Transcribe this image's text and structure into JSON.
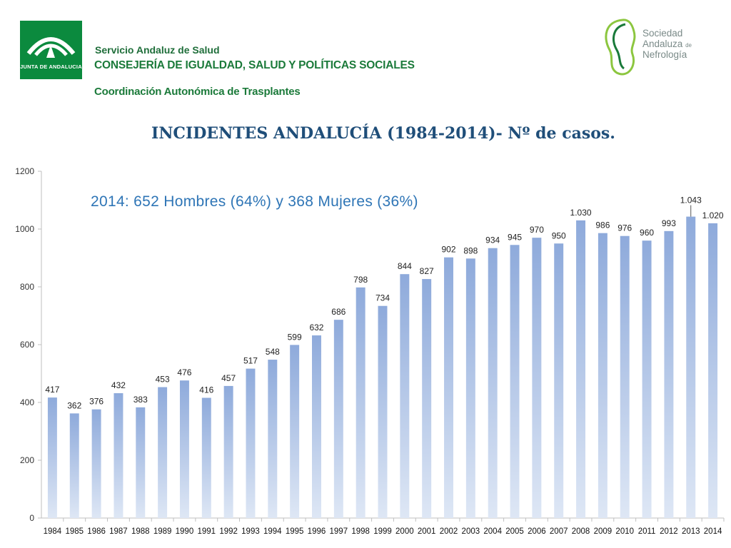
{
  "header": {
    "junta_logo_text": "JUNTA DE ANDALUCIA",
    "org_line1": "Servicio Andaluz de Salud",
    "org_line2": "CONSEJERÍA DE IGUALDAD, SALUD Y POLÍTICAS SOCIALES",
    "org_line3": "Coordinación Autonómica de Trasplantes",
    "sociedad_line1": "Sociedad",
    "sociedad_line2": "Andaluza",
    "sociedad_line2_suffix": "de",
    "sociedad_line3": "Nefrología"
  },
  "chart_data": {
    "type": "bar",
    "title": "INCIDENTES ANDALUCÍA (1984-2014)- Nº de casos.",
    "annotation": "2014: 652 Hombres (64%) y 368 Mujeres (36%)",
    "categories": [
      "1984",
      "1985",
      "1986",
      "1987",
      "1988",
      "1989",
      "1990",
      "1991",
      "1992",
      "1993",
      "1994",
      "1995",
      "1996",
      "1997",
      "1998",
      "1999",
      "2000",
      "2001",
      "2002",
      "2003",
      "2004",
      "2005",
      "2006",
      "2007",
      "2008",
      "2009",
      "2010",
      "2011",
      "2012",
      "2013",
      "2014"
    ],
    "values": [
      417,
      362,
      376,
      432,
      383,
      453,
      476,
      416,
      457,
      517,
      548,
      599,
      632,
      686,
      798,
      734,
      844,
      827,
      902,
      898,
      934,
      945,
      970,
      950,
      1030,
      986,
      976,
      960,
      993,
      1043,
      1020
    ],
    "value_labels": [
      "417",
      "362",
      "376",
      "432",
      "383",
      "453",
      "476",
      "416",
      "457",
      "517",
      "548",
      "599",
      "632",
      "686",
      "798",
      "734",
      "844",
      "827",
      "902",
      "898",
      "934",
      "945",
      "970",
      "950",
      "1.030",
      "986",
      "976",
      "960",
      "993",
      "1.043",
      "1.020"
    ],
    "ylim": [
      0,
      1200
    ],
    "yticks": [
      "0",
      "200",
      "400",
      "600",
      "800",
      "1000",
      "1200"
    ],
    "grid": false,
    "colors": {
      "bar_top": "#8eaadb",
      "bar_bottom": "#dee7f5",
      "axis": "#bfbfbf",
      "title": "#1f4e79",
      "annotation": "#2e75b6"
    }
  }
}
